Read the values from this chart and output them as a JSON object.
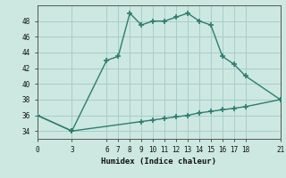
{
  "line1_x": [
    0,
    3,
    6,
    7,
    8,
    9,
    10,
    11,
    12,
    13,
    14,
    15,
    16,
    17,
    18,
    21
  ],
  "line1_y": [
    36,
    34,
    43,
    43.5,
    49,
    47.5,
    48,
    48,
    48.5,
    49,
    48,
    47.5,
    43.5,
    42.5,
    41,
    38
  ],
  "line2_x": [
    0,
    3,
    9,
    10,
    11,
    12,
    13,
    14,
    15,
    16,
    17,
    18,
    21
  ],
  "line2_y": [
    36,
    34,
    35.2,
    35.4,
    35.6,
    35.8,
    36.0,
    36.3,
    36.5,
    36.7,
    36.9,
    37.1,
    38
  ],
  "line_color": "#2e7d6e",
  "bg_color": "#cce8e0",
  "grid_color": "#a8cccc",
  "xlabel": "Humidex (Indice chaleur)",
  "xlim": [
    0,
    21
  ],
  "ylim": [
    33,
    50
  ],
  "xticks": [
    0,
    3,
    6,
    7,
    8,
    9,
    10,
    11,
    12,
    13,
    14,
    15,
    16,
    17,
    18,
    21
  ],
  "yticks": [
    34,
    36,
    38,
    40,
    42,
    44,
    46,
    48
  ],
  "linewidth": 1.0,
  "markersize": 4.0
}
